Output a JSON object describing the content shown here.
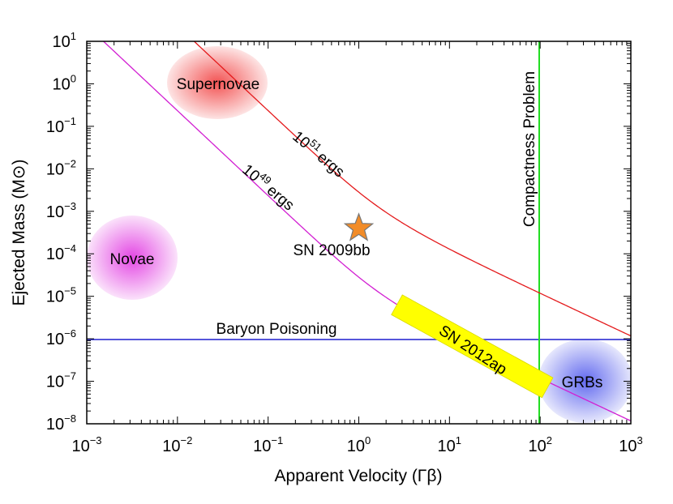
{
  "chart_data": {
    "type": "line",
    "title": "",
    "xlabel": "Apparent Velocity (Γβ)",
    "ylabel": "Ejected Mass (M⊙)",
    "xscale": "log",
    "yscale": "log",
    "xlim_exp": [
      -3,
      3
    ],
    "ylim_exp": [
      -8,
      1
    ],
    "x_ticks": [
      {
        "base": "10",
        "exp": "−3"
      },
      {
        "base": "10",
        "exp": "−2"
      },
      {
        "base": "10",
        "exp": "−1"
      },
      {
        "base": "10",
        "exp": "0"
      },
      {
        "base": "10",
        "exp": "1"
      },
      {
        "base": "10",
        "exp": "2"
      },
      {
        "base": "10",
        "exp": "3"
      }
    ],
    "y_ticks": [
      {
        "base": "10",
        "exp": "1"
      },
      {
        "base": "10",
        "exp": "0"
      },
      {
        "base": "10",
        "exp": "−1"
      },
      {
        "base": "10",
        "exp": "−2"
      },
      {
        "base": "10",
        "exp": "−3"
      },
      {
        "base": "10",
        "exp": "−4"
      },
      {
        "base": "10",
        "exp": "−5"
      },
      {
        "base": "10",
        "exp": "−6"
      },
      {
        "base": "10",
        "exp": "−7"
      },
      {
        "base": "10",
        "exp": "−8"
      }
    ],
    "series": [
      {
        "name": "10^51 ergs",
        "color": "#e41a1c",
        "base": "10",
        "exp": "51",
        "unit": "ergs",
        "log_energy": 51,
        "label_log_x": -0.6,
        "label_log_y": -1.1
      },
      {
        "name": "10^49 ergs",
        "color": "#d21fd2",
        "base": "10",
        "exp": "49",
        "unit": "ergs",
        "log_energy": 49,
        "label_log_x": -1.65,
        "label_log_y": -2.6
      }
    ],
    "reference_lines": [
      {
        "name": "Baryon Poisoning",
        "orientation": "horizontal",
        "log_value": -6,
        "color": "#1f1fcf",
        "label_log_x": -1.1,
        "label_log_y": -5.7
      },
      {
        "name": "Compactness Problem",
        "orientation": "vertical",
        "log_value": 2,
        "color": "#22dd22",
        "label_log_x": 1.84,
        "label_log_y": -1.5
      }
    ],
    "regions": [
      {
        "name": "Supernovae",
        "color": "#f24a4a",
        "log_x": -1.55,
        "log_y": 0.1
      },
      {
        "name": "Novae",
        "color": "#e23ee2",
        "log_x": -2.5,
        "log_y": -4.0
      },
      {
        "name": "GRBs",
        "color": "#5a62ee",
        "log_x": 2.48,
        "log_y": -7.0
      }
    ],
    "points": [
      {
        "name": "SN 2009bb",
        "marker": "star",
        "color": "#f28c28",
        "log_x": 0.0,
        "log_y": -3.4,
        "label_log_x": -0.15,
        "label_log_y": -3.95
      }
    ],
    "bands": [
      {
        "name": "SN 2012ap",
        "color": "#ffff00",
        "log_x1": 0.42,
        "log_y1": -5.2,
        "log_x2": 2.08,
        "log_y2": -7.15
      }
    ]
  }
}
